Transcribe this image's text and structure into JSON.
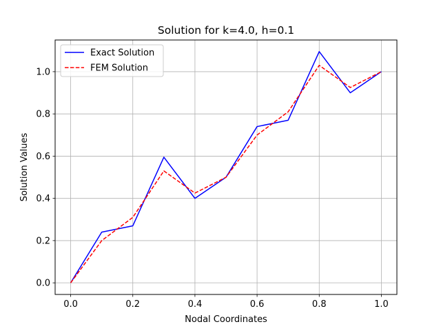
{
  "chart_data": {
    "type": "line",
    "title": "Solution for k=4.0, h=0.1",
    "xlabel": "Nodal Coordinates",
    "ylabel": "Solution Values",
    "xlim": [
      -0.05,
      1.05
    ],
    "ylim": [
      -0.055,
      1.15
    ],
    "xticks": [
      0.0,
      0.2,
      0.4,
      0.6,
      0.8,
      1.0
    ],
    "xtick_labels": [
      "0.0",
      "0.2",
      "0.4",
      "0.6",
      "0.8",
      "1.0"
    ],
    "yticks": [
      0.0,
      0.2,
      0.4,
      0.6,
      0.8,
      1.0
    ],
    "ytick_labels": [
      "0.0",
      "0.2",
      "0.4",
      "0.6",
      "0.8",
      "1.0"
    ],
    "grid": true,
    "legend_position": "top-left",
    "x": [
      0.0,
      0.1,
      0.2,
      0.3,
      0.4,
      0.5,
      0.6,
      0.7,
      0.8,
      0.9,
      1.0
    ],
    "series": [
      {
        "name": "Exact Solution",
        "color": "#0000ff",
        "style": "solid",
        "values": [
          0.0,
          0.24,
          0.27,
          0.595,
          0.4,
          0.5,
          0.74,
          0.77,
          1.095,
          0.9,
          1.0
        ]
      },
      {
        "name": "FEM Solution",
        "color": "#ff0000",
        "style": "dashed",
        "values": [
          0.0,
          0.2,
          0.31,
          0.53,
          0.425,
          0.5,
          0.7,
          0.81,
          1.03,
          0.925,
          1.0
        ]
      }
    ]
  }
}
